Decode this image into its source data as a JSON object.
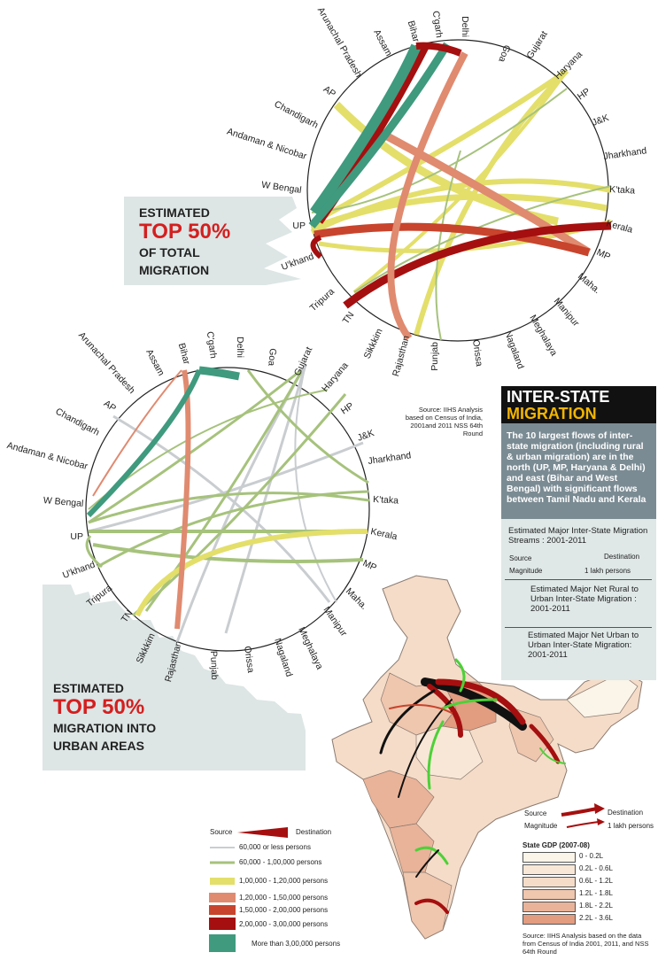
{
  "top_chord": {
    "title_lines": [
      "ESTIMATED",
      "TOP 50%",
      "OF TOTAL",
      "MIGRATION"
    ],
    "states": [
      "Arunachal Pradesh",
      "Assam",
      "Bihar",
      "C'garh",
      "Delhi",
      "Goa",
      "Gujarat",
      "Haryana",
      "HP",
      "J&K",
      "Jharkhand",
      "K'taka",
      "Kerala",
      "MP",
      "Maha.",
      "Manipur",
      "Meghalaya",
      "Nagaland",
      "Orissa",
      "Punjab",
      "Rajasthan",
      "Sikkkim",
      "TN",
      "Tripura",
      "U'khand",
      "UP",
      "W Bengal",
      "Andaman & Nicobar",
      "Chandigarh",
      "AP"
    ]
  },
  "bottom_chord": {
    "title_lines": [
      "ESTIMATED",
      "TOP 50%",
      "MIGRATION INTO",
      "URBAN AREAS"
    ],
    "states": [
      "Arunachal Pradesh",
      "Assam",
      "Bihar",
      "C'garh",
      "Delhi",
      "Goa",
      "Gujarat",
      "Haryana",
      "HP",
      "J&K",
      "Jharkhand",
      "K'taka",
      "Kerala",
      "MP",
      "Maha.",
      "Manipur",
      "Meghalaya",
      "Nagaland",
      "Orissa",
      "Punjab",
      "Rajasthan",
      "Sikkkim",
      "TN",
      "Tripura",
      "U'khand",
      "UP",
      "W Bengal",
      "Andaman & Nicobar",
      "Chandigarh",
      "AP"
    ]
  },
  "source_note": "Source: IIHS Analysis based on Census of India, 2001and 2011 NSS 64th Round",
  "info": {
    "title1": "INTER-STATE",
    "title2": "MIGRATION",
    "body": "The 10 largest flows of inter-state migration (including rural & urban migration) are in the north (UP, MP, Haryana & Delhi) and east (Bihar and West Bengal) with significant flows between Tamil Nadu and Kerala"
  },
  "map_legend": {
    "streams_title": "Estimated Major Inter-State Migration Streams : 2001-2011",
    "source_label": "Source",
    "destination_label": "Destination",
    "magnitude_label": "Magnitude",
    "magnitude_value": "1 lakh persons",
    "rural_urban": "Estimated Major Net Rural to Urban Inter-State Migration : 2001-2011",
    "urban_urban": "Estimated Major Net Urban to Urban Inter-State Migration: 2001-2011"
  },
  "map_legend2": {
    "source_label": "Source",
    "destination_label": "Destination",
    "magnitude_label": "Magnitude",
    "magnitude_value": "1 lakh persons"
  },
  "gdp_legend": {
    "title": "State GDP (2007-08)",
    "items": [
      {
        "label": "0 - 0.2L",
        "color": "#fbf4e8"
      },
      {
        "label": "0.2L - 0.6L",
        "color": "#f8e7d6"
      },
      {
        "label": "0.6L - 1.2L",
        "color": "#f5dcc8"
      },
      {
        "label": "1.2L - 1.8L",
        "color": "#efc6ae"
      },
      {
        "label": "1.8L - 2.2L",
        "color": "#e9b399"
      },
      {
        "label": "2.2L - 3.6L",
        "color": "#e29c80"
      }
    ],
    "source": "Source: IIHS Analysis based on the data from Census of India 2001, 2011, and NSS 64th Round"
  },
  "flow_legend": {
    "source_label": "Source",
    "destination_label": "Destination",
    "items": [
      {
        "label": "60,000 or less persons",
        "color": "#c9cdd0"
      },
      {
        "label": "60,000 - 1,00,000 persons",
        "color": "#a6c27c"
      },
      {
        "label": "1,00,000 - 1,20,000 persons",
        "color": "#e3df6a"
      },
      {
        "label": "1,20,000 - 1,50,000 persons",
        "color": "#e08a70"
      },
      {
        "label": "1,50,000 - 2,00,000 persons",
        "color": "#c8442c"
      },
      {
        "label": "2,00,000 - 3,00,000 persons",
        "color": "#a50f0f"
      },
      {
        "label": "More than 3,00,000 persons",
        "color": "#3f9a7e"
      }
    ]
  }
}
